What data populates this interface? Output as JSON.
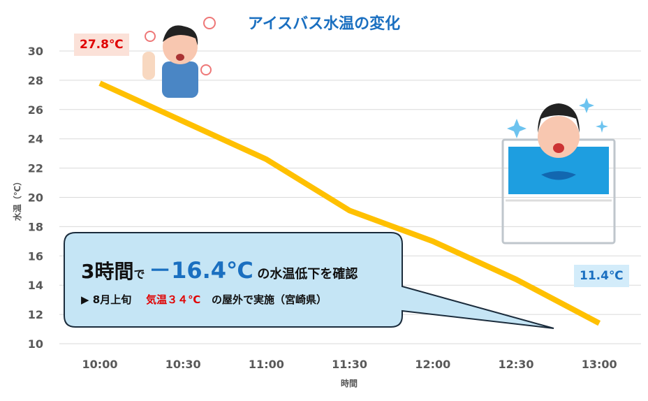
{
  "chart_data": {
    "type": "line",
    "title": "アイスバス水温の変化",
    "xlabel": "時間",
    "ylabel": "水温（℃）",
    "categories": [
      "10:00",
      "10:30",
      "11:00",
      "11:30",
      "12:00",
      "12:30",
      "13:00"
    ],
    "series": [
      {
        "name": "水温",
        "values": [
          27.8,
          25.2,
          22.6,
          19.1,
          17.0,
          14.4,
          11.4
        ],
        "color": "#ffc000"
      }
    ],
    "ylim": [
      10,
      30
    ],
    "yticks": [
      "10",
      "12",
      "14",
      "16",
      "18",
      "20",
      "22",
      "24",
      "26",
      "28",
      "30"
    ],
    "grid": true,
    "annotations": {
      "start_label": "27.8℃",
      "end_label": "11.4℃",
      "callout": {
        "l1_hours": "3時間",
        "l1_de": "で",
        "l1_value": "－16.4℃",
        "l1_rest": "の水温低下を確認",
        "l2_prefix": "▶ 8月上旬",
        "l2_temp": "気温３４℃",
        "l2_rest": "の屋外で実施（宮崎県）"
      }
    }
  }
}
